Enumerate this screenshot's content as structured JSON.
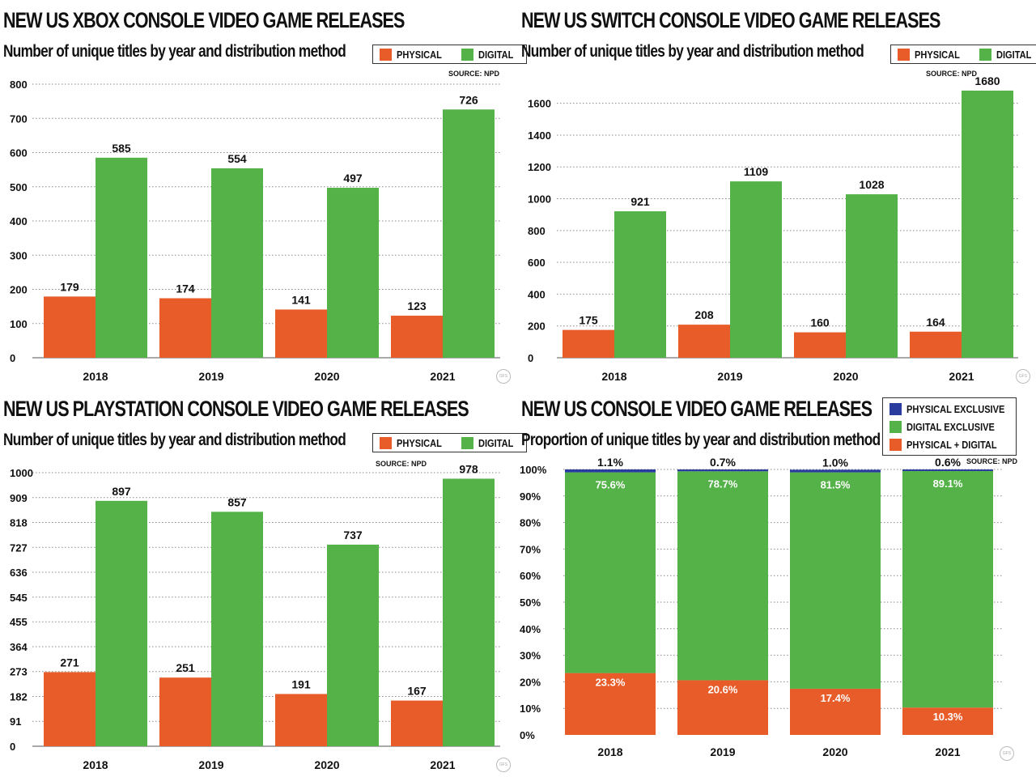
{
  "colors": {
    "physical": "#e85c29",
    "digital": "#54b248",
    "physical_exclusive": "#2a3d9e"
  },
  "chart_data": [
    {
      "type": "bar",
      "title": "NEW US XBOX CONSOLE VIDEO GAME RELEASES",
      "subtitle": "Number of unique titles by year and distribution method",
      "source": "SOURCE: NPD",
      "categories": [
        "2018",
        "2019",
        "2020",
        "2021"
      ],
      "series": [
        {
          "name": "PHYSICAL",
          "values": [
            179,
            174,
            141,
            123
          ],
          "labels": [
            "179",
            "174",
            "141",
            "123"
          ]
        },
        {
          "name": "DIGITAL",
          "values": [
            585,
            554,
            497,
            726
          ],
          "labels": [
            "585",
            "554",
            "497",
            "726"
          ]
        }
      ],
      "ylim": [
        0,
        800
      ],
      "yticks": [
        0,
        100,
        200,
        300,
        400,
        500,
        600,
        700,
        800
      ],
      "yticklabels": [
        "0",
        "100",
        "200",
        "300",
        "400",
        "500",
        "600",
        "700",
        "800"
      ],
      "legend": "top-right",
      "grid": true
    },
    {
      "type": "bar",
      "title": "NEW US SWITCH CONSOLE VIDEO GAME RELEASES",
      "subtitle": "Number of unique titles by year and distribution method",
      "source": "SOURCE: NPD",
      "categories": [
        "2018",
        "2019",
        "2020",
        "2021"
      ],
      "series": [
        {
          "name": "PHYSICAL",
          "values": [
            175,
            208,
            160,
            164
          ],
          "labels": [
            "175",
            "208",
            "160",
            "164"
          ]
        },
        {
          "name": "DIGITAL",
          "values": [
            921,
            1109,
            1028,
            1680
          ],
          "labels": [
            "921",
            "1109",
            "1028",
            "1680"
          ]
        }
      ],
      "ylim": [
        0,
        1700
      ],
      "yticks": [
        0,
        200,
        400,
        600,
        800,
        1000,
        1200,
        1400,
        1600
      ],
      "yticklabels": [
        "0",
        "200",
        "400",
        "600",
        "800",
        "1000",
        "1200",
        "1400",
        "1600"
      ],
      "legend": "top-right",
      "grid": true
    },
    {
      "type": "bar",
      "title": "NEW US PLAYSTATION CONSOLE VIDEO GAME RELEASES",
      "subtitle": "Number of unique titles by year and distribution method",
      "source": "SOURCE: NPD",
      "categories": [
        "2018",
        "2019",
        "2020",
        "2021"
      ],
      "series": [
        {
          "name": "PHYSICAL",
          "values": [
            271,
            251,
            191,
            167
          ],
          "labels": [
            "271",
            "251",
            "191",
            "167"
          ]
        },
        {
          "name": "DIGITAL",
          "values": [
            897,
            857,
            737,
            978
          ],
          "labels": [
            "897",
            "857",
            "737",
            "978"
          ]
        }
      ],
      "ylim": [
        0,
        1000
      ],
      "yticks": [
        0,
        91,
        182,
        273,
        364,
        455,
        545,
        636,
        727,
        818,
        909,
        1000
      ],
      "yticklabels": [
        "0",
        "91",
        "182",
        "273",
        "364",
        "455",
        "545",
        "636",
        "727",
        "818",
        "909",
        "1000"
      ],
      "legend": "top-right",
      "grid": true
    },
    {
      "type": "bar",
      "stacked": true,
      "title": "NEW US CONSOLE VIDEO GAME RELEASES",
      "subtitle": "Proportion of unique titles by year and distribution method",
      "source": "SOURCE: NPD",
      "categories": [
        "2018",
        "2019",
        "2020",
        "2021"
      ],
      "series": [
        {
          "name": "PHYSICAL + DIGITAL",
          "values": [
            23.3,
            20.6,
            17.4,
            10.3
          ],
          "labels": [
            "23.3%",
            "20.6%",
            "17.4%",
            "10.3%"
          ]
        },
        {
          "name": "DIGITAL EXCLUSIVE",
          "values": [
            75.6,
            78.7,
            81.5,
            89.1
          ],
          "labels": [
            "75.6%",
            "78.7%",
            "81.5%",
            "89.1%"
          ]
        },
        {
          "name": "PHYSICAL EXCLUSIVE",
          "values": [
            1.1,
            0.7,
            1.0,
            0.6
          ],
          "labels": [
            "1.1%",
            "0.7%",
            "1.0%",
            "0.6%"
          ]
        }
      ],
      "legend_order": [
        "PHYSICAL EXCLUSIVE",
        "DIGITAL EXCLUSIVE",
        "PHYSICAL + DIGITAL"
      ],
      "ylim": [
        0,
        100
      ],
      "yticks": [
        0,
        10,
        20,
        30,
        40,
        50,
        60,
        70,
        80,
        90,
        100
      ],
      "yticklabels": [
        "0%",
        "10%",
        "20%",
        "30%",
        "40%",
        "50%",
        "60%",
        "70%",
        "80%",
        "90%",
        "100%"
      ],
      "legend": "top-right",
      "grid": true
    }
  ]
}
